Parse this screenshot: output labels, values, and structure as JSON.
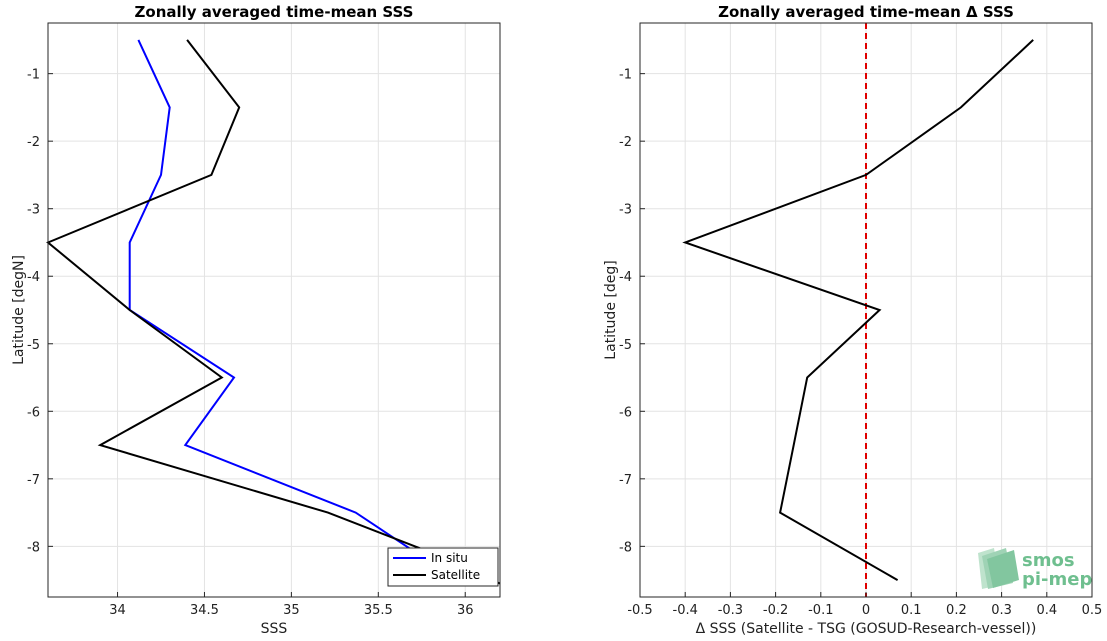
{
  "chart_data": [
    {
      "type": "line",
      "title": "Zonally averaged time-mean SSS",
      "xlabel": "SSS",
      "ylabel": "Latitude [degN]",
      "xlim": [
        33.6,
        36.2
      ],
      "ylim": [
        -8.75,
        -0.25
      ],
      "xticks": [
        34,
        34.5,
        35,
        35.5,
        36
      ],
      "xticklabels": [
        "34",
        "34.5",
        "35",
        "35.5",
        "36"
      ],
      "yticks": [
        -1,
        -2,
        -3,
        -4,
        -5,
        -6,
        -7,
        -8
      ],
      "yticklabels": [
        "-1",
        "-2",
        "-3",
        "-4",
        "-5",
        "-6",
        "-7",
        "-8"
      ],
      "grid": true,
      "legend_position": "bottom-right",
      "series": [
        {
          "name": "In situ",
          "color": "#0000ff",
          "x": [
            34.12,
            34.3,
            34.25,
            34.07,
            34.07,
            34.67,
            34.39,
            35.37,
            35.72
          ],
          "y": [
            -0.5,
            -1.5,
            -2.5,
            -3.5,
            -4.5,
            -5.5,
            -6.5,
            -7.5,
            -8.1
          ]
        },
        {
          "name": "Satellite",
          "color": "#000000",
          "x": [
            34.4,
            34.7,
            34.54,
            33.6,
            34.07,
            34.6,
            33.9,
            35.21,
            35.76,
            36.2
          ],
          "y": [
            -0.5,
            -1.5,
            -2.5,
            -3.5,
            -4.5,
            -5.5,
            -6.5,
            -7.5,
            -8.05,
            -8.55
          ]
        }
      ]
    },
    {
      "type": "line",
      "title": "Zonally averaged time-mean Δ SSS",
      "xlabel": "Δ SSS (Satellite - TSG (GOSUD-Research-vessel))",
      "ylabel": "Latitude [deg]",
      "xlim": [
        -0.5,
        0.5
      ],
      "ylim": [
        -8.75,
        -0.25
      ],
      "xticks": [
        -0.5,
        -0.4,
        -0.3,
        -0.2,
        -0.1,
        0,
        0.1,
        0.2,
        0.3,
        0.4,
        0.5
      ],
      "xticklabels": [
        "-0.5",
        "-0.4",
        "-0.3",
        "-0.2",
        "-0.1",
        "0",
        "0.1",
        "0.2",
        "0.3",
        "0.4",
        "0.5"
      ],
      "yticks": [
        -1,
        -2,
        -3,
        -4,
        -5,
        -6,
        -7,
        -8
      ],
      "yticklabels": [
        "-1",
        "-2",
        "-3",
        "-4",
        "-5",
        "-6",
        "-7",
        "-8"
      ],
      "grid": true,
      "series": [
        {
          "color": "#000000",
          "x": [
            0.37,
            0.21,
            0.0,
            -0.4,
            0.03,
            -0.13,
            -0.16,
            -0.19,
            0.07
          ],
          "y": [
            -0.5,
            -1.5,
            -2.5,
            -3.5,
            -4.5,
            -5.5,
            -6.5,
            -7.5,
            -8.5
          ]
        }
      ],
      "reference_line": {
        "x": 0,
        "color": "#e00000",
        "style": "dashed"
      }
    }
  ],
  "logo": {
    "line1": "smos",
    "line2": "pi-mep",
    "color": "#6fbf8f"
  }
}
